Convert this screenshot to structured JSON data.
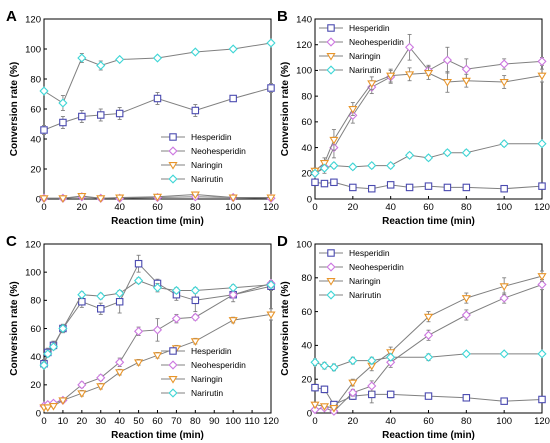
{
  "figure": {
    "series_styles": [
      {
        "name": "Hesperidin",
        "color": "#4a4ab0",
        "marker": "square"
      },
      {
        "name": "Neohesperidin",
        "color": "#cc77e0",
        "marker": "diamond"
      },
      {
        "name": "Naringin",
        "color": "#e8952a",
        "marker": "triangle-down"
      },
      {
        "name": "Narirutin",
        "color": "#3fd6d6",
        "marker": "diamond"
      }
    ],
    "line_color": "#808080"
  },
  "chart_data": [
    {
      "type": "line",
      "panel_label": "A",
      "xlabel": "Reaction time (min)",
      "ylabel": "Conversion rate (%)",
      "xlim": [
        0,
        120
      ],
      "ylim": [
        0,
        120
      ],
      "xticks": [
        0,
        20,
        40,
        60,
        80,
        100,
        120
      ],
      "yticks": [
        0,
        20,
        40,
        60,
        80,
        100,
        120
      ],
      "legend_position": "bottom-right",
      "x": [
        0,
        10,
        20,
        30,
        40,
        60,
        80,
        100,
        120
      ],
      "series": [
        {
          "name": "Hesperidin",
          "values": [
            46,
            51,
            55,
            56,
            57,
            67,
            59,
            67,
            74
          ],
          "errors": [
            3,
            4,
            4,
            4,
            4,
            4,
            4,
            2,
            3
          ]
        },
        {
          "name": "Neohesperidin",
          "values": [
            0.5,
            0.5,
            1.5,
            0.5,
            0.5,
            1,
            1.5,
            1,
            0.5
          ],
          "errors": [
            0,
            0,
            1,
            0,
            0,
            1,
            1,
            0,
            0
          ]
        },
        {
          "name": "Naringin",
          "values": [
            0.5,
            0.5,
            2,
            0.5,
            1,
            1.5,
            3,
            1,
            1
          ],
          "errors": [
            0,
            0,
            1,
            0,
            0,
            1,
            1,
            0,
            0
          ]
        },
        {
          "name": "Narirutin",
          "values": [
            72,
            64,
            94,
            89,
            93,
            94,
            98,
            100,
            104
          ],
          "errors": [
            1,
            5,
            3,
            3,
            1,
            1,
            1,
            1,
            1
          ]
        }
      ]
    },
    {
      "type": "line",
      "panel_label": "B",
      "xlabel": "Reaction time (min)",
      "ylabel": "Conversion rate (%)",
      "xlim": [
        0,
        120
      ],
      "ylim": [
        0,
        140
      ],
      "xticks": [
        0,
        20,
        40,
        60,
        80,
        100,
        120
      ],
      "yticks": [
        0,
        20,
        40,
        60,
        80,
        100,
        120,
        140
      ],
      "legend_position": "top-left",
      "x": [
        0,
        5,
        10,
        20,
        30,
        40,
        50,
        60,
        70,
        80,
        100,
        120
      ],
      "series": [
        {
          "name": "Hesperidin",
          "values": [
            13,
            12,
            13,
            9,
            8,
            11,
            9,
            10,
            9,
            9,
            8,
            10
          ],
          "errors": [
            1,
            1,
            1,
            1,
            1,
            1,
            1,
            1,
            1,
            1,
            1,
            1
          ]
        },
        {
          "name": "Neohesperidin",
          "values": [
            20,
            25,
            40,
            65,
            87,
            95,
            118,
            100,
            108,
            101,
            105,
            107
          ],
          "errors": [
            2,
            5,
            8,
            6,
            5,
            5,
            10,
            4,
            10,
            8,
            4,
            3
          ]
        },
        {
          "name": "Naringin",
          "values": [
            22,
            28,
            46,
            70,
            90,
            96,
            97,
            98,
            91,
            92,
            91,
            96
          ],
          "errors": [
            2,
            4,
            8,
            5,
            5,
            5,
            5,
            5,
            8,
            5,
            5,
            5
          ]
        },
        {
          "name": "Narirutin",
          "values": [
            20,
            24,
            26,
            25,
            26,
            26,
            34,
            32,
            36,
            36,
            43,
            43
          ],
          "errors": [
            1,
            2,
            2,
            2,
            2,
            2,
            2,
            2,
            2,
            2,
            2,
            1
          ]
        }
      ]
    },
    {
      "type": "line",
      "panel_label": "C",
      "xlabel": "Reaction time (min)",
      "ylabel": "Conversion rate (%)",
      "xlim": [
        0,
        120
      ],
      "ylim": [
        0,
        120
      ],
      "xticks": [
        0,
        10,
        20,
        30,
        40,
        50,
        60,
        70,
        80,
        90,
        100,
        110,
        120
      ],
      "yticks": [
        0,
        20,
        40,
        60,
        80,
        100,
        120
      ],
      "legend_position": "bottom-right",
      "x": [
        0,
        2,
        5,
        10,
        20,
        30,
        40,
        50,
        60,
        70,
        80,
        100,
        120
      ],
      "series": [
        {
          "name": "Hesperidin",
          "values": [
            35,
            43,
            48,
            60,
            79,
            74,
            79,
            106,
            92,
            84,
            80,
            84,
            90
          ],
          "errors": [
            3,
            3,
            3,
            3,
            4,
            4,
            8,
            6,
            3,
            4,
            8,
            5,
            3
          ]
        },
        {
          "name": "Neohesperidin",
          "values": [
            5,
            6,
            7,
            9,
            20,
            25,
            36,
            58,
            59,
            67,
            68,
            84,
            92
          ],
          "errors": [
            1,
            1,
            1,
            1,
            2,
            2,
            3,
            3,
            8,
            3,
            2,
            2,
            2
          ]
        },
        {
          "name": "Naringin",
          "values": [
            4,
            4,
            5,
            9,
            14,
            19,
            29,
            36,
            41,
            46,
            51,
            66,
            70
          ],
          "errors": [
            1,
            1,
            1,
            1,
            2,
            2,
            2,
            2,
            2,
            2,
            2,
            2,
            4
          ]
        },
        {
          "name": "Narirutin",
          "values": [
            34,
            42,
            47,
            60,
            84,
            83,
            85,
            94,
            89,
            87,
            87,
            89,
            91
          ],
          "errors": [
            2,
            2,
            2,
            2,
            2,
            2,
            2,
            2,
            3,
            2,
            2,
            2,
            2
          ]
        }
      ]
    },
    {
      "type": "line",
      "panel_label": "D",
      "xlabel": "Reaction time (min)",
      "ylabel": "Conversion rate (%)",
      "xlim": [
        0,
        120
      ],
      "ylim": [
        0,
        100
      ],
      "xticks": [
        0,
        20,
        40,
        60,
        80,
        100,
        120
      ],
      "yticks": [
        0,
        20,
        40,
        60,
        80,
        100
      ],
      "legend_position": "top-left",
      "x": [
        0,
        5,
        10,
        20,
        30,
        40,
        60,
        80,
        100,
        120
      ],
      "series": [
        {
          "name": "Hesperidin",
          "values": [
            15,
            14,
            5,
            10,
            11,
            11,
            10,
            9,
            7,
            8
          ],
          "errors": [
            2,
            2,
            1,
            2,
            5,
            2,
            1,
            1,
            1,
            1
          ]
        },
        {
          "name": "Neohesperidin",
          "values": [
            2,
            3,
            1,
            12,
            16,
            30,
            46,
            58,
            68,
            76
          ],
          "errors": [
            1,
            1,
            1,
            2,
            3,
            3,
            3,
            3,
            3,
            3
          ]
        },
        {
          "name": "Naringin",
          "values": [
            5,
            4,
            3,
            18,
            28,
            36,
            57,
            68,
            75,
            81
          ],
          "errors": [
            1,
            1,
            1,
            2,
            3,
            3,
            3,
            3,
            5,
            3
          ]
        },
        {
          "name": "Narirutin",
          "values": [
            30,
            28,
            27,
            31,
            31,
            33,
            33,
            35,
            35,
            35
          ],
          "errors": [
            2,
            2,
            2,
            2,
            2,
            2,
            2,
            1,
            1,
            1
          ]
        }
      ]
    }
  ]
}
